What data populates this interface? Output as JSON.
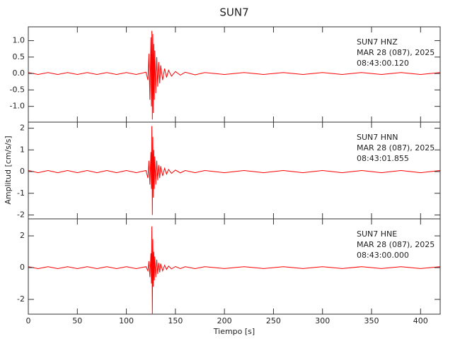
{
  "title": "SUN7",
  "xlabel": "Tiempo [s]",
  "ylabel": "Amplitud [cm/s/s]",
  "chart_data": [
    {
      "type": "line",
      "annotations": [
        "SUN7   HNZ",
        "MAR 28 (087), 2025",
        "08:43:00.120"
      ],
      "xlim": [
        0,
        420
      ],
      "xticks": [
        0,
        50,
        100,
        150,
        200,
        250,
        300,
        350,
        400
      ],
      "ylim": [
        -1.48,
        1.42
      ],
      "yticks": [
        {
          "value": -1,
          "label": "-1.0"
        },
        -0.5,
        {
          "value": 0,
          "label": "0.0"
        },
        0.5,
        {
          "value": 1,
          "label": "1.0"
        }
      ],
      "x": [
        0,
        10,
        20,
        30,
        40,
        50,
        60,
        70,
        80,
        90,
        100,
        110,
        120,
        122,
        123,
        124,
        125,
        125.5,
        126,
        126.5,
        127,
        127.5,
        128,
        128.5,
        129,
        130,
        131,
        132,
        133,
        134,
        135,
        137,
        139,
        141,
        143,
        146,
        150,
        155,
        160,
        170,
        180,
        200,
        220,
        240,
        260,
        280,
        300,
        320,
        340,
        360,
        380,
        400,
        420
      ],
      "series": [
        {
          "color": "#ff0000",
          "values": [
            0.03,
            -0.03,
            0.03,
            -0.03,
            0.03,
            -0.03,
            0.03,
            -0.03,
            0.03,
            -0.03,
            0.03,
            -0.03,
            0.04,
            -0.2,
            0.6,
            -0.8,
            1.1,
            -1.0,
            1.3,
            -1.4,
            1.2,
            -1.2,
            0.9,
            -0.8,
            0.7,
            -0.6,
            0.5,
            -0.4,
            0.35,
            -0.3,
            0.25,
            -0.2,
            0.15,
            -0.12,
            0.1,
            -0.08,
            0.06,
            -0.05,
            0.04,
            -0.04,
            0.03,
            -0.03,
            0.03,
            -0.03,
            0.03,
            -0.03,
            0.03,
            -0.03,
            0.03,
            -0.03,
            0.03,
            -0.03,
            0.03
          ]
        }
      ]
    },
    {
      "type": "line",
      "annotations": [
        "SUN7   HNN",
        "MAR 28 (087), 2025",
        "08:43:01.855"
      ],
      "xlim": [
        0,
        420
      ],
      "xticks": [
        0,
        50,
        100,
        150,
        200,
        250,
        300,
        350,
        400
      ],
      "ylim": [
        -2.18,
        2.28
      ],
      "yticks": [
        -2,
        -1,
        0,
        1,
        2
      ],
      "x": [
        0,
        10,
        20,
        30,
        40,
        50,
        60,
        70,
        80,
        90,
        100,
        110,
        120,
        122,
        123,
        124,
        125,
        125.5,
        126,
        126.5,
        127,
        127.5,
        128,
        128.5,
        129,
        130,
        131,
        132,
        133,
        134,
        135,
        137,
        139,
        141,
        143,
        146,
        150,
        155,
        160,
        170,
        180,
        200,
        220,
        240,
        260,
        280,
        300,
        320,
        340,
        360,
        380,
        400,
        420
      ],
      "series": [
        {
          "color": "#ff0000",
          "values": [
            0.05,
            -0.05,
            0.05,
            -0.05,
            0.05,
            -0.05,
            0.05,
            -0.05,
            0.05,
            -0.05,
            0.05,
            -0.05,
            0.05,
            -0.3,
            0.5,
            -0.6,
            0.9,
            -0.8,
            2.1,
            -2.0,
            1.6,
            -1.2,
            1.0,
            -0.8,
            0.7,
            -0.6,
            0.5,
            -0.4,
            0.3,
            -0.3,
            0.25,
            -0.2,
            0.15,
            -0.12,
            0.1,
            -0.08,
            0.07,
            -0.06,
            0.05,
            -0.05,
            0.05,
            -0.05,
            0.05,
            -0.05,
            0.05,
            -0.05,
            0.05,
            -0.05,
            0.05,
            -0.05,
            0.05,
            -0.05,
            0.05
          ]
        }
      ]
    },
    {
      "type": "line",
      "annotations": [
        "SUN7   HNE",
        "MAR 28 (087), 2025",
        "08:43:00.000"
      ],
      "xlim": [
        0,
        420
      ],
      "xticks": [
        0,
        50,
        100,
        150,
        200,
        250,
        300,
        350,
        400
      ],
      "ylim": [
        -2.93,
        3.07
      ],
      "yticks": [
        -2,
        0,
        2
      ],
      "x": [
        0,
        10,
        20,
        30,
        40,
        50,
        60,
        70,
        80,
        90,
        100,
        110,
        120,
        122,
        123,
        124,
        125,
        125.5,
        126,
        126.5,
        127,
        127.5,
        128,
        128.5,
        129,
        130,
        131,
        132,
        133,
        134,
        135,
        137,
        139,
        141,
        143,
        146,
        150,
        155,
        160,
        170,
        180,
        200,
        220,
        240,
        260,
        280,
        300,
        320,
        340,
        360,
        380,
        400,
        420
      ],
      "series": [
        {
          "color": "#ff0000",
          "values": [
            0.06,
            -0.06,
            0.06,
            -0.06,
            0.06,
            -0.06,
            0.06,
            -0.06,
            0.06,
            -0.06,
            0.06,
            -0.06,
            0.06,
            -0.2,
            0.4,
            -0.6,
            0.9,
            -1.0,
            2.6,
            -2.9,
            1.8,
            -1.2,
            1.0,
            -0.8,
            0.7,
            -0.6,
            0.5,
            -0.4,
            0.3,
            -0.3,
            0.25,
            -0.2,
            0.15,
            -0.12,
            0.1,
            -0.08,
            0.07,
            -0.06,
            0.06,
            -0.06,
            0.06,
            -0.06,
            0.06,
            -0.06,
            0.06,
            -0.06,
            0.06,
            -0.06,
            0.06,
            -0.06,
            0.06,
            -0.06,
            0.06
          ]
        }
      ]
    }
  ]
}
